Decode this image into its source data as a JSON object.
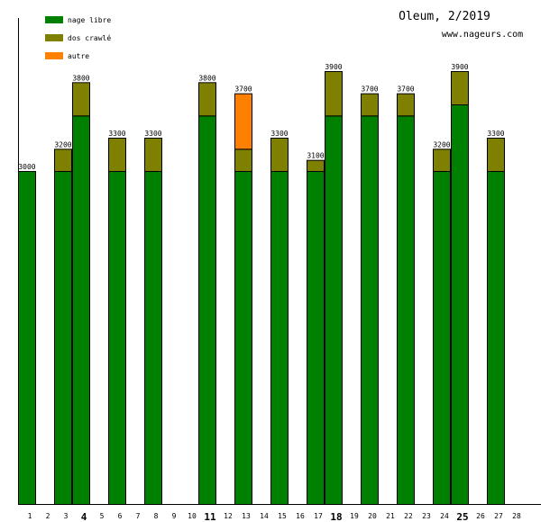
{
  "chart_data": {
    "type": "bar",
    "stacked": true,
    "title": "Oleum, 2/2019",
    "subtitle": "www.nageurs.com",
    "xlabel": "",
    "ylabel": "",
    "ylim": [
      0,
      4300
    ],
    "legend_position": "top-left",
    "categories": [
      "1",
      "2",
      "3",
      "4",
      "5",
      "6",
      "7",
      "8",
      "9",
      "10",
      "11",
      "12",
      "13",
      "14",
      "15",
      "16",
      "17",
      "18",
      "19",
      "20",
      "21",
      "22",
      "23",
      "24",
      "25",
      "26",
      "27",
      "28"
    ],
    "bold_categories": [
      "4",
      "11",
      "18",
      "25"
    ],
    "series": [
      {
        "name": "nage libre",
        "color": "#008000",
        "values": [
          3000,
          0,
          3000,
          3500,
          0,
          3000,
          0,
          3000,
          0,
          0,
          3500,
          0,
          3000,
          0,
          3000,
          0,
          3000,
          3500,
          0,
          3500,
          0,
          3500,
          0,
          3000,
          3600,
          0,
          3000,
          0
        ]
      },
      {
        "name": "dos crawlé",
        "color": "#808000",
        "values": [
          0,
          0,
          200,
          300,
          0,
          300,
          0,
          300,
          0,
          0,
          300,
          0,
          200,
          0,
          300,
          0,
          100,
          400,
          0,
          200,
          0,
          200,
          0,
          200,
          300,
          0,
          300,
          0
        ]
      },
      {
        "name": "autre",
        "color": "#ff8000",
        "values": [
          0,
          0,
          0,
          0,
          0,
          0,
          0,
          0,
          0,
          0,
          0,
          0,
          500,
          0,
          0,
          0,
          0,
          0,
          0,
          0,
          0,
          0,
          0,
          0,
          0,
          0,
          0,
          0
        ]
      }
    ],
    "totals": [
      "3000",
      "",
      "3200",
      "3800",
      "",
      "3300",
      "",
      "3300",
      "",
      "",
      "3800",
      "",
      "3700",
      "",
      "3300",
      "",
      "3100",
      "3900",
      "",
      "3700",
      "",
      "3700",
      "",
      "3200",
      "3900",
      "",
      "3300",
      ""
    ]
  }
}
